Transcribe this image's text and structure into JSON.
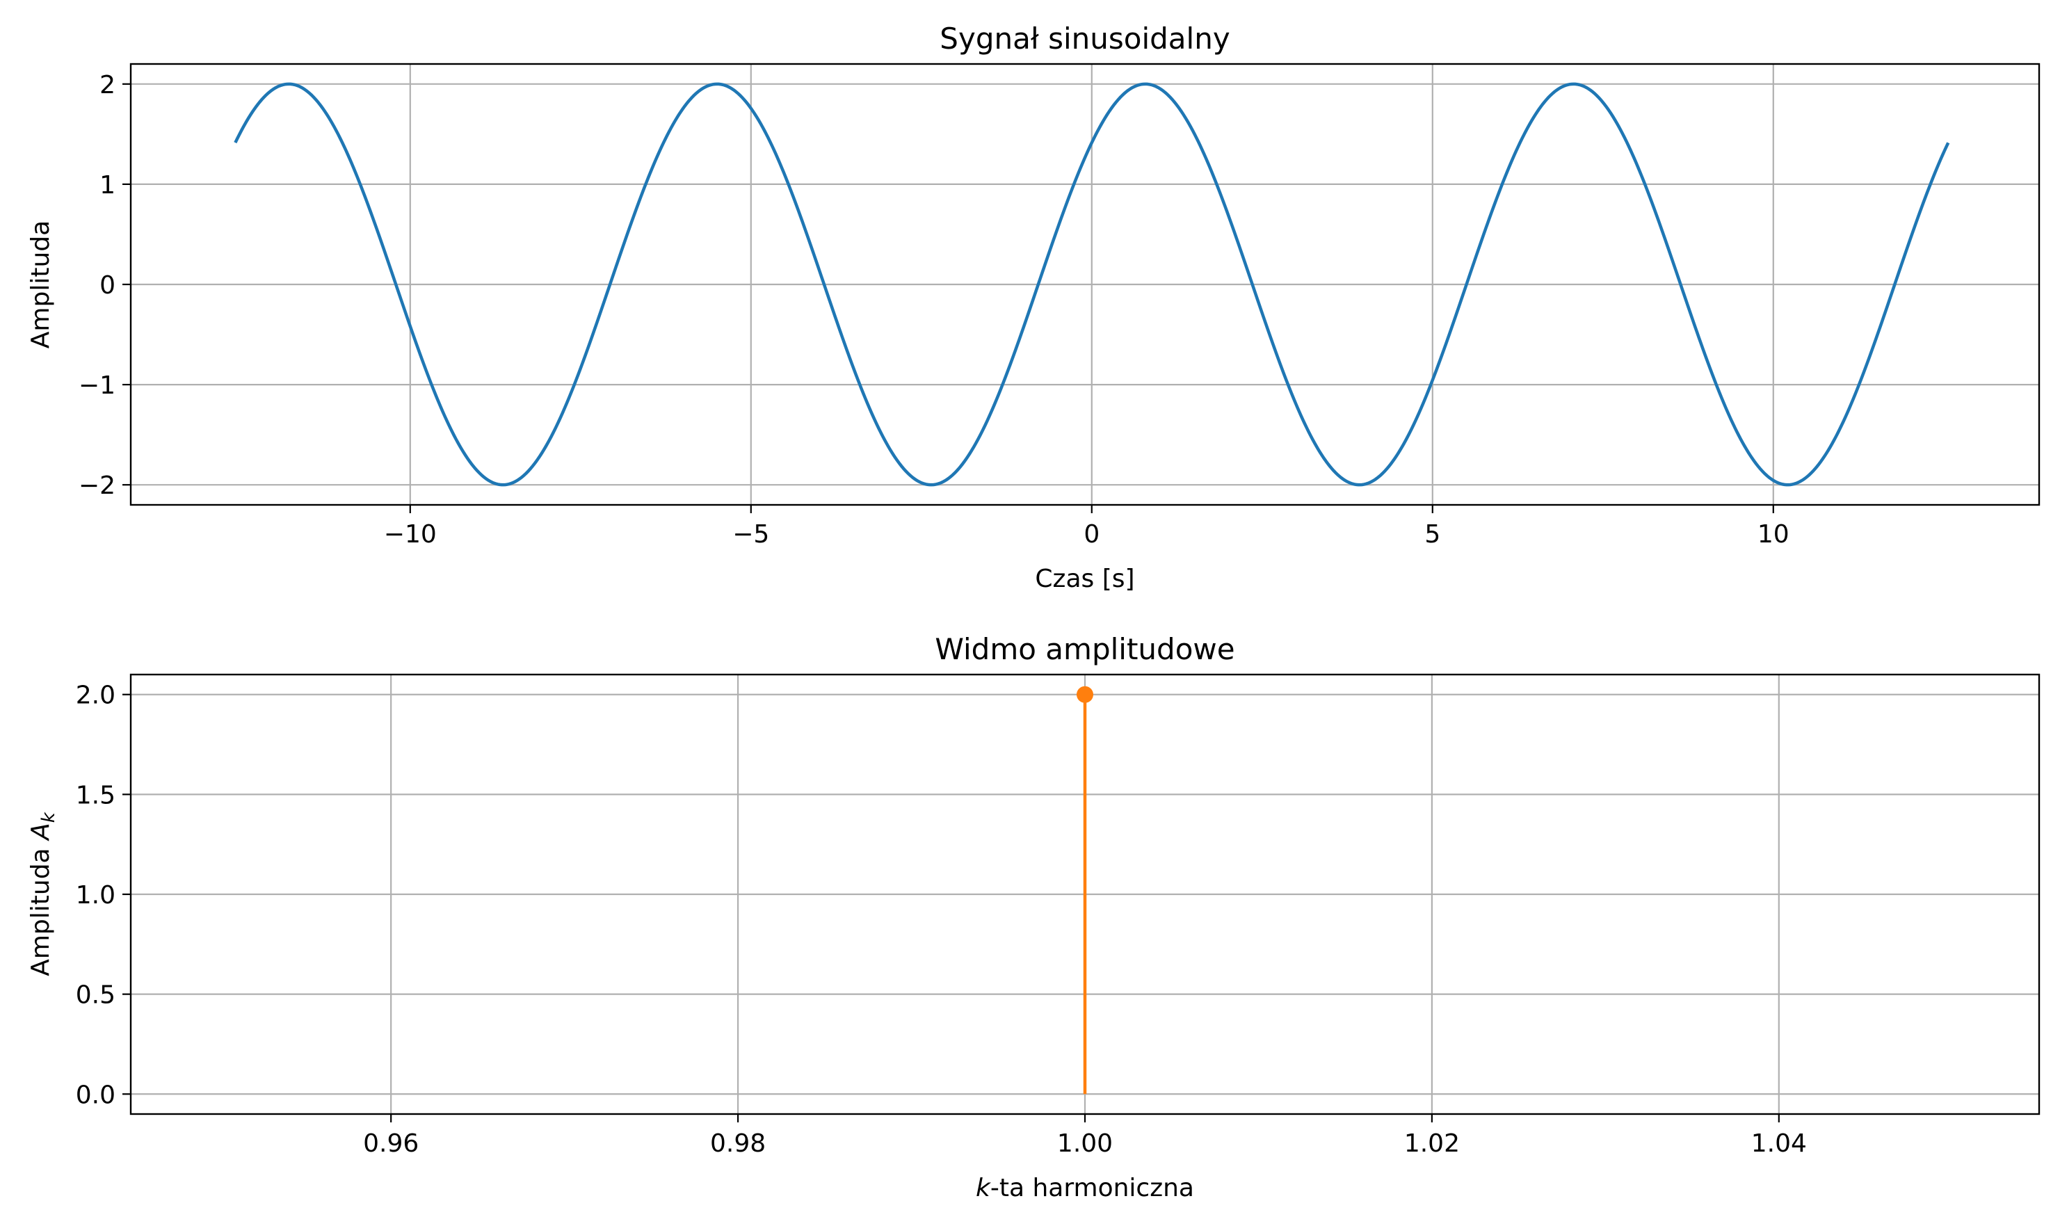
{
  "colors": {
    "signal": "#1f77b4",
    "spectrum": "#ff7f0e",
    "grid": "#b0b0b0"
  },
  "chart_data": [
    {
      "type": "line",
      "title": "Sygnał sinusoidalny",
      "xlabel": "Czas [s]",
      "ylabel": "Amplituda",
      "xlim": [
        -14.1,
        13.9
      ],
      "ylim": [
        -2.2,
        2.2
      ],
      "x_ticks": [
        -10,
        -5,
        0,
        5,
        10
      ],
      "x_tick_labels": [
        "−10",
        "−5",
        "0",
        "5",
        "10"
      ],
      "y_ticks": [
        -2,
        -1,
        0,
        1,
        2
      ],
      "y_tick_labels": [
        "−2",
        "−1",
        "0",
        "1",
        "2"
      ],
      "grid": true,
      "series": [
        {
          "function": "2*sin(t + pi/4)",
          "x_range": [
            -12.566,
            12.566
          ],
          "amplitude": 2,
          "angular_frequency": 1,
          "phase": 0.7854
        }
      ]
    },
    {
      "type": "stem",
      "title": "Widmo amplitudowe",
      "xlabel": "-ta harmoniczna",
      "xlabel_var": "k",
      "ylabel": "Amplituda",
      "ylabel_var": "A",
      "ylabel_sub": "k",
      "xlim": [
        0.945,
        1.055
      ],
      "ylim": [
        -0.1,
        2.1
      ],
      "x_ticks": [
        0.96,
        0.98,
        1.0,
        1.02,
        1.04
      ],
      "x_tick_labels": [
        "0.96",
        "0.98",
        "1.00",
        "1.02",
        "1.04"
      ],
      "y_ticks": [
        0.0,
        0.5,
        1.0,
        1.5,
        2.0
      ],
      "y_tick_labels": [
        "0.0",
        "0.5",
        "1.0",
        "1.5",
        "2.0"
      ],
      "grid": true,
      "series": [
        {
          "x": [
            1.0
          ],
          "values": [
            2.0
          ]
        }
      ]
    }
  ]
}
